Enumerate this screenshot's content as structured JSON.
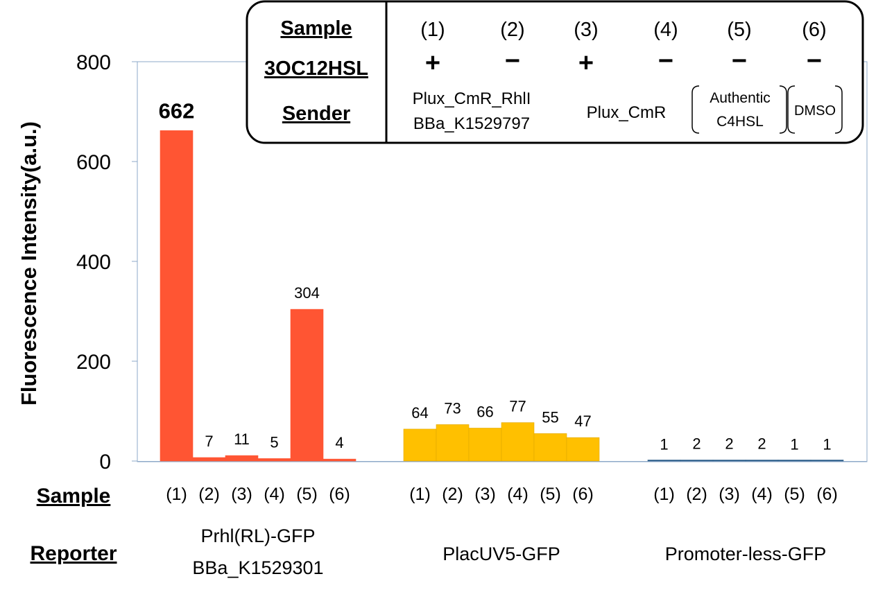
{
  "chart_data": {
    "type": "bar",
    "ylabel": "Fluorescence Intensity(a.u.)",
    "ylim": [
      0,
      800
    ],
    "yticks": [
      0,
      200,
      400,
      600,
      800
    ],
    "grid": false,
    "groups": [
      {
        "reporter": [
          "Prhl(RL)-GFP",
          "BBa_K1529301"
        ],
        "color": "#ff5533",
        "categories": [
          "(1)",
          "(2)",
          "(3)",
          "(4)",
          "(5)",
          "(6)"
        ],
        "values": [
          662,
          7,
          11,
          5,
          304,
          4
        ]
      },
      {
        "reporter": [
          "PlacUV5-GFP"
        ],
        "color": "#ffc000",
        "categories": [
          "(1)",
          "(2)",
          "(3)",
          "(4)",
          "(5)",
          "(6)"
        ],
        "values": [
          64,
          73,
          66,
          77,
          55,
          47
        ]
      },
      {
        "reporter": [
          "Promoter-less-GFP"
        ],
        "color": "#2e5f8a",
        "categories": [
          "(1)",
          "(2)",
          "(3)",
          "(4)",
          "(5)",
          "(6)"
        ],
        "values": [
          1,
          2,
          2,
          2,
          1,
          1
        ]
      }
    ],
    "x_row_labels": {
      "sample": "Sample",
      "reporter": "Reporter"
    },
    "legend_table": {
      "row_labels": [
        "Sample",
        "3OC12HSL",
        "Sender"
      ],
      "samples": [
        "(1)",
        "(2)",
        "(3)",
        "(4)",
        "(5)",
        "(6)"
      ],
      "signal": [
        "+",
        "−",
        "+",
        "−",
        "−",
        "−"
      ],
      "sender_1": [
        "Plux_CmR_RhlI",
        "BBa_K1529797"
      ],
      "sender_2": "Plux_CmR",
      "sender_3": [
        "Authentic",
        "C4HSL"
      ],
      "sender_4": "DMSO"
    }
  }
}
